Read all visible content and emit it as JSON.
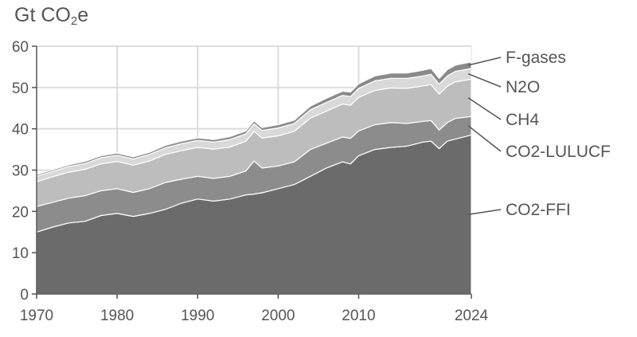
{
  "unit_title": {
    "main": "Gt CO",
    "sub": "2",
    "suffix": "e"
  },
  "chart_data": {
    "type": "area",
    "stacked": true,
    "ylabel": "Gt CO2e",
    "xlim": [
      1970,
      2024
    ],
    "ylim": [
      0,
      60
    ],
    "yticks": [
      0,
      10,
      20,
      30,
      40,
      50,
      60
    ],
    "xtick_labels": [
      "1970",
      "1980",
      "1990",
      "2000",
      "2010",
      "2024"
    ],
    "grid": "vertical and horizontal",
    "legend": "right, inline labels with leader lines",
    "x": [
      1970,
      1972,
      1974,
      1976,
      1978,
      1980,
      1982,
      1984,
      1986,
      1988,
      1990,
      1992,
      1994,
      1996,
      1997,
      1998,
      2000,
      2002,
      2004,
      2006,
      2008,
      2009,
      2010,
      2012,
      2014,
      2016,
      2018,
      2019,
      2020,
      2021,
      2022,
      2024
    ],
    "series": [
      {
        "name": "CO2-FFI",
        "color": "#6b6b6b",
        "values": [
          15.0,
          16.2,
          17.2,
          17.6,
          19.0,
          19.5,
          18.8,
          19.5,
          20.5,
          22.0,
          23.0,
          22.5,
          23.0,
          24.0,
          24.2,
          24.5,
          25.5,
          26.5,
          28.5,
          30.5,
          32.0,
          31.5,
          33.5,
          35.0,
          35.5,
          35.8,
          36.8,
          37.0,
          35.2,
          37.0,
          37.5,
          38.5
        ]
      },
      {
        "name": "CO2-LULUCF",
        "color": "#8c8c8c",
        "values": [
          6.2,
          6.0,
          6.0,
          6.2,
          6.0,
          6.0,
          5.8,
          6.0,
          6.5,
          5.8,
          5.5,
          5.5,
          5.5,
          5.8,
          8.0,
          6.0,
          5.5,
          5.5,
          6.5,
          6.0,
          6.0,
          6.2,
          6.0,
          6.0,
          6.0,
          5.5,
          5.0,
          5.0,
          4.5,
          4.5,
          5.0,
          4.5
        ]
      },
      {
        "name": "CH4",
        "color": "#bdbdbd",
        "values": [
          6.0,
          6.2,
          6.3,
          6.4,
          6.5,
          6.6,
          6.6,
          6.7,
          6.8,
          6.9,
          7.0,
          7.1,
          7.1,
          7.2,
          7.2,
          7.3,
          7.3,
          7.4,
          7.6,
          7.8,
          8.0,
          8.0,
          8.1,
          8.3,
          8.4,
          8.5,
          8.6,
          8.7,
          8.7,
          8.8,
          8.9,
          9.0
        ]
      },
      {
        "name": "N2O",
        "color": "#d9d9d9",
        "values": [
          1.3,
          1.3,
          1.4,
          1.4,
          1.5,
          1.5,
          1.5,
          1.6,
          1.6,
          1.7,
          1.7,
          1.7,
          1.8,
          1.8,
          1.8,
          1.8,
          1.9,
          1.9,
          2.0,
          2.1,
          2.1,
          2.1,
          2.2,
          2.3,
          2.3,
          2.4,
          2.4,
          2.5,
          2.4,
          2.5,
          2.5,
          2.6
        ]
      },
      {
        "name": "F-gases",
        "color": "#8a8a8a",
        "values": [
          0.4,
          0.4,
          0.4,
          0.5,
          0.5,
          0.5,
          0.5,
          0.5,
          0.6,
          0.6,
          0.6,
          0.6,
          0.7,
          0.7,
          0.7,
          0.7,
          0.8,
          0.8,
          0.9,
          1.0,
          1.0,
          1.1,
          1.1,
          1.2,
          1.3,
          1.3,
          1.4,
          1.4,
          1.4,
          1.5,
          1.5,
          1.6
        ]
      }
    ]
  }
}
